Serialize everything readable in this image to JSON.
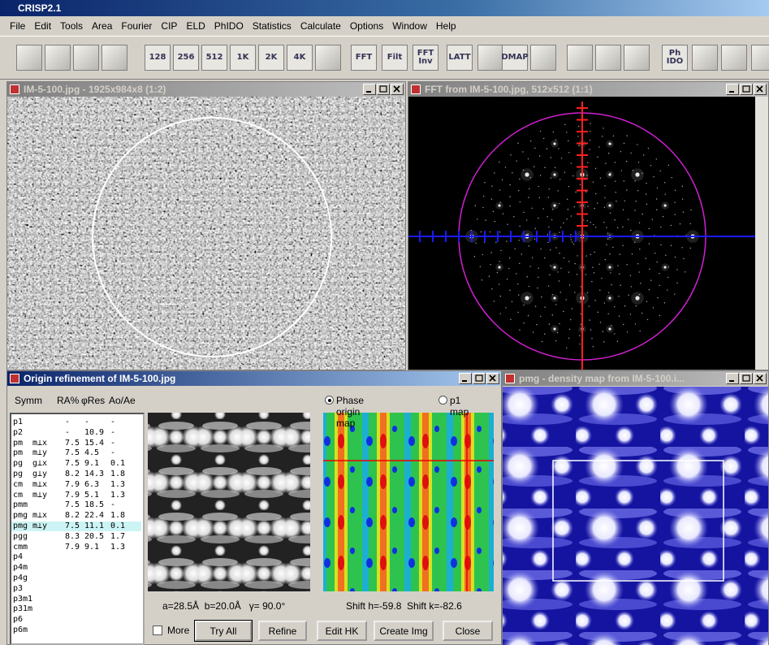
{
  "app": {
    "title": "CRISP2.1",
    "menu": [
      "File",
      "Edit",
      "Tools",
      "Area",
      "Fourier",
      "CIP",
      "ELD",
      "PhIDO",
      "Statistics",
      "Calculate",
      "Options",
      "Window",
      "Help"
    ],
    "toolbar": [
      "128",
      "256",
      "512",
      "1K",
      "2K",
      "4K",
      "FFT",
      "Filt",
      "FFT Inv",
      "LATT",
      "DMAP",
      "Ph IDO"
    ]
  },
  "windows": {
    "image": {
      "title": "IM-5-100.jpg - 1925x984x8 (1:2)"
    },
    "fft": {
      "title": "FFT from IM-5-100.jpg, 512x512 (1:1)"
    },
    "origin": {
      "title": "Origin refinement of IM-5-100.jpg",
      "headers": [
        "Symm",
        "RA%",
        "φRes",
        "Ao/Ae"
      ],
      "rows": [
        {
          "symm": "p1",
          "ra": "-",
          "res": "-",
          "ratio": "-"
        },
        {
          "symm": "p2",
          "ra": "-",
          "res": 10.9,
          "ratio": "-"
        },
        {
          "symm": "pm",
          "axis": "m⊥x",
          "ra": 7.5,
          "res": 15.4,
          "ratio": "-"
        },
        {
          "symm": "pm",
          "axis": "m⊥y",
          "ra": 7.5,
          "res": 4.5,
          "ratio": "-"
        },
        {
          "symm": "pg",
          "axis": "g⊥x",
          "ra": 7.5,
          "res": 9.1,
          "ratio": 0.1
        },
        {
          "symm": "pg",
          "axis": "g⊥y",
          "ra": 8.2,
          "res": 14.3,
          "ratio": 1.8
        },
        {
          "symm": "cm",
          "axis": "m⊥x",
          "ra": 7.9,
          "res": 6.3,
          "ratio": 1.3
        },
        {
          "symm": "cm",
          "axis": "m⊥y",
          "ra": 7.9,
          "res": 5.1,
          "ratio": 1.3
        },
        {
          "symm": "pmm",
          "ra": 7.5,
          "res": 18.5,
          "ratio": "-"
        },
        {
          "symm": "pmg",
          "axis": "m⊥x",
          "ra": 8.2,
          "res": 22.4,
          "ratio": 1.8
        },
        {
          "symm": "pmg",
          "axis": "m⊥y",
          "ra": 7.5,
          "res": 11.1,
          "ratio": 0.1,
          "selected": true
        },
        {
          "symm": "pgg",
          "ra": 8.3,
          "res": 20.5,
          "ratio": 1.7
        },
        {
          "symm": "cmm",
          "ra": 7.9,
          "res": 9.1,
          "ratio": 1.3
        },
        {
          "symm": "p4"
        },
        {
          "symm": "p4m"
        },
        {
          "symm": "p4g"
        },
        {
          "symm": "p3"
        },
        {
          "symm": "p3m1"
        },
        {
          "symm": "p31m"
        },
        {
          "symm": "p6"
        },
        {
          "symm": "p6m"
        }
      ],
      "options": [
        {
          "label": "Phase origin map",
          "checked": true
        },
        {
          "label": "p1 map"
        }
      ],
      "cell": "a=28.5Å  b=20.0Å   γ= 90.0°",
      "shift": "Shift h=-59.8  Shift k=-82.6",
      "more": "More",
      "buttons": [
        "Try All",
        "Refine",
        "Edit HK",
        "Create Img",
        "Close"
      ]
    },
    "density": {
      "title": "pmg - density map from IM-5-100.i..."
    }
  }
}
